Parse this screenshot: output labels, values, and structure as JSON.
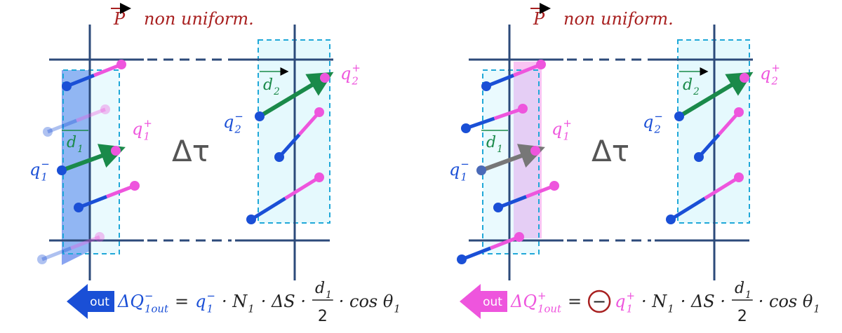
{
  "panels": [
    {
      "title": {
        "vector": "P",
        "text": "non uniform."
      },
      "accent": "#1a4fd6",
      "delta_tau": "Δτ",
      "d1": {
        "base": "d",
        "sub": "1"
      },
      "d2": {
        "base": "d",
        "sub": "2"
      },
      "q1_minus": {
        "base": "q",
        "sub": "1",
        "sup": "−"
      },
      "q1_plus": {
        "base": "q",
        "sub": "1",
        "sup": "+"
      },
      "q2_minus": {
        "base": "q",
        "sub": "2",
        "sup": "−"
      },
      "q2_plus": {
        "base": "q",
        "sub": "2",
        "sup": "+"
      },
      "out_label": "out",
      "equation": [
        {
          "base": "ΔQ",
          "sub": "1out",
          "sup": "−",
          "color": "#1a4fd6"
        },
        {
          "base": "="
        },
        {
          "base": "q",
          "sub": "1",
          "sup": "−",
          "color": "#1a4fd6"
        },
        {
          "base": "· N",
          "sub": "1"
        },
        {
          "base": "· ΔS ·"
        },
        {
          "num": {
            "base": "d",
            "sub": "1"
          },
          "den": "2"
        },
        {
          "base": "· cos θ",
          "sub": "1"
        }
      ]
    },
    {
      "title": {
        "vector": "P",
        "text": "non uniform."
      },
      "accent": "#ee55dd",
      "delta_tau": "Δτ",
      "d1": {
        "base": "d",
        "sub": "1"
      },
      "d2": {
        "base": "d",
        "sub": "2"
      },
      "q1_minus": {
        "base": "q",
        "sub": "1",
        "sup": "−"
      },
      "q1_plus": {
        "base": "q",
        "sub": "1",
        "sup": "+"
      },
      "q2_minus": {
        "base": "q",
        "sub": "2",
        "sup": "−"
      },
      "q2_plus": {
        "base": "q",
        "sub": "2",
        "sup": "+"
      },
      "out_label": "out",
      "equation": [
        {
          "base": "ΔQ",
          "sub": "1out",
          "sup": "+",
          "color": "#ee55dd"
        },
        {
          "base": "="
        },
        {
          "circled": "−"
        },
        {
          "base": "q",
          "sub": "1",
          "sup": "+",
          "color": "#ee55dd"
        },
        {
          "base": "· N",
          "sub": "1"
        },
        {
          "base": "· ΔS ·"
        },
        {
          "num": {
            "base": "d",
            "sub": "1"
          },
          "den": "2"
        },
        {
          "base": "· cos θ",
          "sub": "1"
        }
      ]
    }
  ]
}
